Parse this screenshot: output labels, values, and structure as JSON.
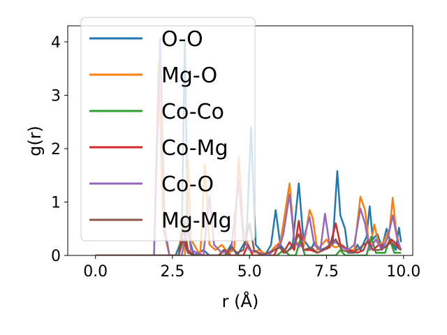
{
  "chart_data": {
    "type": "line",
    "xlabel": "r (Å)",
    "ylabel": "g(r)",
    "xlim": [
      -0.9,
      10.3
    ],
    "ylim": [
      0,
      4.3
    ],
    "xticks": [
      0.0,
      2.5,
      5.0,
      7.5,
      10.0
    ],
    "xtick_labels": [
      "0.0",
      "2.5",
      "5.0",
      "7.5",
      "10.0"
    ],
    "yticks": [
      0,
      1,
      2,
      3,
      4
    ],
    "ytick_labels": [
      "0",
      "1",
      "2",
      "3",
      "4"
    ],
    "grid": false,
    "legend_position": "upper-left",
    "series": [
      {
        "name": "O-O",
        "color": "#1f77b4",
        "points": [
          [
            0,
            0
          ],
          [
            2.6,
            0
          ],
          [
            2.8,
            0.3
          ],
          [
            2.9,
            4.05
          ],
          [
            3.0,
            0.4
          ],
          [
            3.2,
            0
          ],
          [
            3.5,
            0.1
          ],
          [
            3.7,
            0
          ],
          [
            4.2,
            0
          ],
          [
            4.4,
            0.2
          ],
          [
            4.6,
            0
          ],
          [
            4.9,
            0.3
          ],
          [
            5.05,
            2.4
          ],
          [
            5.2,
            0.2
          ],
          [
            5.5,
            0
          ],
          [
            5.7,
            0.2
          ],
          [
            5.85,
            0.85
          ],
          [
            6.0,
            0.2
          ],
          [
            6.2,
            0.05
          ],
          [
            6.4,
            0.2
          ],
          [
            6.6,
            1.35
          ],
          [
            6.75,
            0.3
          ],
          [
            7.0,
            0.1
          ],
          [
            7.1,
            0.25
          ],
          [
            7.3,
            0.1
          ],
          [
            7.5,
            0.15
          ],
          [
            7.7,
            0.2
          ],
          [
            7.85,
            1.58
          ],
          [
            7.95,
            0.75
          ],
          [
            8.1,
            0.5
          ],
          [
            8.2,
            0.05
          ],
          [
            8.4,
            0.05
          ],
          [
            8.5,
            0.2
          ],
          [
            8.6,
            0.1
          ],
          [
            8.8,
            0.35
          ],
          [
            8.9,
            0.92
          ],
          [
            9.0,
            0.3
          ],
          [
            9.15,
            0.4
          ],
          [
            9.3,
            0.15
          ],
          [
            9.45,
            0.5
          ],
          [
            9.55,
            0.3
          ],
          [
            9.65,
            0.2
          ],
          [
            9.75,
            0.1
          ],
          [
            9.85,
            0.52
          ],
          [
            9.92,
            0.25
          ]
        ]
      },
      {
        "name": "Mg-O",
        "color": "#ff7f0e",
        "points": [
          [
            0,
            0
          ],
          [
            1.9,
            0
          ],
          [
            2.05,
            3.58
          ],
          [
            2.2,
            0.5
          ],
          [
            2.4,
            0
          ],
          [
            2.9,
            0
          ],
          [
            3.0,
            1.8
          ],
          [
            3.1,
            0.3
          ],
          [
            3.4,
            0
          ],
          [
            3.55,
            1.7
          ],
          [
            3.7,
            0.2
          ],
          [
            3.9,
            0.1
          ],
          [
            4.1,
            0.2
          ],
          [
            4.3,
            0.05
          ],
          [
            4.5,
            0.1
          ],
          [
            4.65,
            1.85
          ],
          [
            4.8,
            0.5
          ],
          [
            4.95,
            0.2
          ],
          [
            5.1,
            0.05
          ],
          [
            5.3,
            0.1
          ],
          [
            5.6,
            0
          ],
          [
            5.8,
            0.15
          ],
          [
            6.0,
            0.25
          ],
          [
            6.1,
            0.6
          ],
          [
            6.3,
            1.35
          ],
          [
            6.45,
            0.3
          ],
          [
            6.6,
            0.2
          ],
          [
            6.75,
            0.15
          ],
          [
            6.95,
            0.85
          ],
          [
            7.05,
            0.7
          ],
          [
            7.2,
            0.1
          ],
          [
            7.5,
            0.3
          ],
          [
            7.6,
            0.2
          ],
          [
            7.8,
            0.15
          ],
          [
            8.0,
            0.2
          ],
          [
            8.2,
            0.1
          ],
          [
            8.4,
            0.1
          ],
          [
            8.6,
            1.1
          ],
          [
            8.75,
            0.85
          ],
          [
            8.9,
            0.1
          ],
          [
            9.05,
            0.58
          ],
          [
            9.2,
            0.2
          ],
          [
            9.35,
            0.25
          ],
          [
            9.55,
            0.5
          ],
          [
            9.65,
            1.08
          ],
          [
            9.75,
            0.5
          ],
          [
            9.85,
            0.2
          ],
          [
            9.92,
            0.1
          ]
        ]
      },
      {
        "name": "Co-Co",
        "color": "#2ca02c",
        "points": [
          [
            0,
            0
          ],
          [
            2.7,
            0
          ],
          [
            2.85,
            0.7
          ],
          [
            3.0,
            0.1
          ],
          [
            3.2,
            0
          ],
          [
            4.0,
            0
          ],
          [
            4.15,
            0.1
          ],
          [
            4.3,
            0
          ],
          [
            5.9,
            0
          ],
          [
            6.1,
            0.1
          ],
          [
            6.3,
            0
          ],
          [
            6.5,
            0
          ],
          [
            6.65,
            0.3
          ],
          [
            6.8,
            0
          ],
          [
            7.8,
            0
          ],
          [
            7.95,
            0.1
          ],
          [
            8.1,
            0
          ],
          [
            8.8,
            0
          ],
          [
            8.95,
            0.35
          ],
          [
            9.1,
            0.05
          ],
          [
            9.4,
            0.05
          ],
          [
            9.55,
            0.3
          ],
          [
            9.7,
            0.05
          ],
          [
            9.92,
            0.05
          ]
        ]
      },
      {
        "name": "Co-Mg",
        "color": "#d62728",
        "points": [
          [
            0,
            0
          ],
          [
            2.7,
            0
          ],
          [
            2.85,
            0.5
          ],
          [
            3.0,
            0.1
          ],
          [
            3.2,
            0
          ],
          [
            4.0,
            0
          ],
          [
            4.2,
            0.1
          ],
          [
            4.4,
            0
          ],
          [
            4.8,
            0
          ],
          [
            4.95,
            0.2
          ],
          [
            5.1,
            0
          ],
          [
            5.8,
            0
          ],
          [
            5.95,
            0.2
          ],
          [
            6.1,
            0.05
          ],
          [
            6.3,
            0.25
          ],
          [
            6.45,
            0.1
          ],
          [
            6.6,
            0.65
          ],
          [
            6.75,
            0.1
          ],
          [
            7.0,
            0.1
          ],
          [
            7.2,
            0.05
          ],
          [
            7.4,
            0.1
          ],
          [
            7.6,
            0.15
          ],
          [
            7.8,
            0.6
          ],
          [
            7.95,
            0.2
          ],
          [
            8.2,
            0.1
          ],
          [
            8.5,
            0.05
          ],
          [
            8.7,
            0.1
          ],
          [
            8.85,
            0.3
          ],
          [
            9.0,
            0.1
          ],
          [
            9.2,
            0.2
          ],
          [
            9.4,
            0.15
          ],
          [
            9.6,
            0.3
          ],
          [
            9.8,
            0.2
          ],
          [
            9.92,
            0.1
          ]
        ]
      },
      {
        "name": "Co-O",
        "color": "#9467bd",
        "points": [
          [
            0,
            0
          ],
          [
            1.9,
            0
          ],
          [
            2.1,
            4.07
          ],
          [
            2.25,
            0.5
          ],
          [
            2.4,
            0
          ],
          [
            2.8,
            0
          ],
          [
            3.0,
            0.6
          ],
          [
            3.1,
            0.1
          ],
          [
            3.5,
            0
          ],
          [
            3.7,
            1.1
          ],
          [
            3.85,
            0.2
          ],
          [
            4.1,
            0.05
          ],
          [
            4.4,
            0.1
          ],
          [
            4.65,
            1.4
          ],
          [
            4.8,
            0.3
          ],
          [
            5.0,
            0.1
          ],
          [
            5.3,
            0.05
          ],
          [
            5.6,
            0
          ],
          [
            5.8,
            0.1
          ],
          [
            6.0,
            0.2
          ],
          [
            6.1,
            0.4
          ],
          [
            6.3,
            1.15
          ],
          [
            6.45,
            0.3
          ],
          [
            6.6,
            0.15
          ],
          [
            6.75,
            0.3
          ],
          [
            6.95,
            0.72
          ],
          [
            7.1,
            0.2
          ],
          [
            7.3,
            0.1
          ],
          [
            7.45,
            0.78
          ],
          [
            7.6,
            0.2
          ],
          [
            7.8,
            0.25
          ],
          [
            8.0,
            0.15
          ],
          [
            8.2,
            0.1
          ],
          [
            8.4,
            0.2
          ],
          [
            8.6,
            0.88
          ],
          [
            8.75,
            0.6
          ],
          [
            8.9,
            0.1
          ],
          [
            9.1,
            0.3
          ],
          [
            9.3,
            0.1
          ],
          [
            9.5,
            0.35
          ],
          [
            9.65,
            0.75
          ],
          [
            9.8,
            0.3
          ],
          [
            9.92,
            0.1
          ]
        ]
      },
      {
        "name": "Mg-Mg",
        "color": "#8c564b",
        "points": [
          [
            0,
            0
          ],
          [
            2.7,
            0
          ],
          [
            2.85,
            0.3
          ],
          [
            3.0,
            0.05
          ],
          [
            3.2,
            0
          ],
          [
            4.2,
            0
          ],
          [
            4.4,
            0.15
          ],
          [
            4.6,
            0.05
          ],
          [
            4.8,
            0.1
          ],
          [
            5.0,
            0.6
          ],
          [
            5.15,
            0.1
          ],
          [
            5.4,
            0
          ],
          [
            5.8,
            0.1
          ],
          [
            6.0,
            0.15
          ],
          [
            6.15,
            0.05
          ],
          [
            6.4,
            0.15
          ],
          [
            6.6,
            0.4
          ],
          [
            6.75,
            0.1
          ],
          [
            7.0,
            0.15
          ],
          [
            7.2,
            0.05
          ],
          [
            7.4,
            0.1
          ],
          [
            7.6,
            0.2
          ],
          [
            7.8,
            0.3
          ],
          [
            8.0,
            0.1
          ],
          [
            8.3,
            0.05
          ],
          [
            8.5,
            0.1
          ],
          [
            8.7,
            0.2
          ],
          [
            8.85,
            0.25
          ],
          [
            9.0,
            0.1
          ],
          [
            9.2,
            0.1
          ],
          [
            9.4,
            0.15
          ],
          [
            9.6,
            0.25
          ],
          [
            9.8,
            0.15
          ],
          [
            9.92,
            0.1
          ]
        ]
      }
    ]
  }
}
